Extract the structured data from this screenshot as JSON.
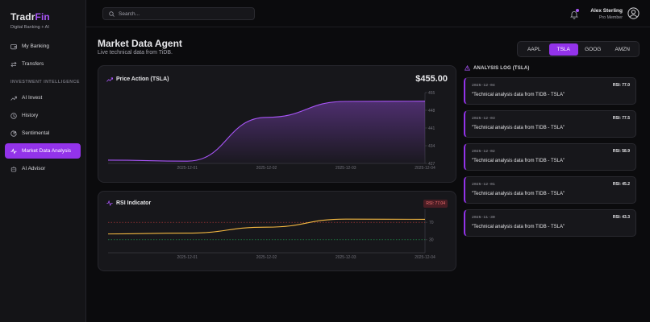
{
  "brand": {
    "name_main": "Tradr",
    "name_accent": "Fin",
    "tagline": "Digital Banking + AI"
  },
  "sidebar": {
    "items_top": [
      {
        "label": "My Banking",
        "icon": "wallet-icon"
      },
      {
        "label": "Transfers",
        "icon": "transfer-icon"
      }
    ],
    "section_label": "INVESTMENT INTELLIGENCE",
    "items_bottom": [
      {
        "label": "AI Invest",
        "icon": "trend-up-icon"
      },
      {
        "label": "History",
        "icon": "clock-icon"
      },
      {
        "label": "Sentimental",
        "icon": "pie-icon"
      },
      {
        "label": "Market Data Analysis",
        "icon": "activity-icon",
        "active": true
      },
      {
        "label": "AI Advisor",
        "icon": "robot-icon"
      }
    ]
  },
  "topbar": {
    "search_placeholder": "Search...",
    "user_name": "Alex Sterling",
    "user_role": "Pro Member"
  },
  "page": {
    "title": "Market Data Agent",
    "subtitle": "Live technical data from TiDB."
  },
  "tickers": [
    "AAPL",
    "TSLA",
    "GOOG",
    "AMZN"
  ],
  "active_ticker": "TSLA",
  "price_card": {
    "title": "Price Action (TSLA)",
    "price": "$455.00"
  },
  "rsi_card": {
    "title": "RSI Indicator",
    "badge": "RSI: 77.04"
  },
  "log": {
    "title": "ANALYSIS LOG (TSLA)",
    "entries": [
      {
        "date": "2025-12-04",
        "rsi": "RSI: 77.0",
        "text": "\"Technical analysis data from TIDB - TSLA\""
      },
      {
        "date": "2025-12-03",
        "rsi": "RSI: 77.5",
        "text": "\"Technical analysis data from TIDB - TSLA\""
      },
      {
        "date": "2025-12-02",
        "rsi": "RSI: 58.9",
        "text": "\"Technical analysis data from TIDB - TSLA\""
      },
      {
        "date": "2025-12-01",
        "rsi": "RSI: 45.2",
        "text": "\"Technical analysis data from TIDB - TSLA\""
      },
      {
        "date": "2025-11-30",
        "rsi": "RSI: 43.3",
        "text": "\"Technical analysis data from TIDB - TSLA\""
      }
    ]
  },
  "chart_data": [
    {
      "type": "area",
      "title": "Price Action (TSLA)",
      "x": [
        "2025-11-30",
        "2025-12-01",
        "2025-12-02",
        "2025-12-03",
        "2025-12-04"
      ],
      "y": [
        428.3,
        427.9,
        445.2,
        451.5,
        451.6
      ],
      "x_ticks": [
        "2025-12-01",
        "2025-12-02",
        "2025-12-03",
        "2025-12-04"
      ],
      "y_ticks": [
        427,
        434,
        441,
        448,
        455
      ],
      "ylim": [
        427,
        455
      ],
      "color": "#a855f7"
    },
    {
      "type": "line",
      "title": "RSI Indicator",
      "x": [
        "2025-11-30",
        "2025-12-01",
        "2025-12-02",
        "2025-12-03",
        "2025-12-04"
      ],
      "y": [
        43.3,
        45.2,
        58.9,
        77.5,
        77.0
      ],
      "x_ticks": [
        "2025-12-01",
        "2025-12-02",
        "2025-12-03",
        "2025-12-04"
      ],
      "y_ticks": [
        30,
        70
      ],
      "thresholds": [
        {
          "value": 70,
          "color": "#ef4444"
        },
        {
          "value": 30,
          "color": "#22c55e"
        }
      ],
      "color": "#f5b941"
    }
  ]
}
